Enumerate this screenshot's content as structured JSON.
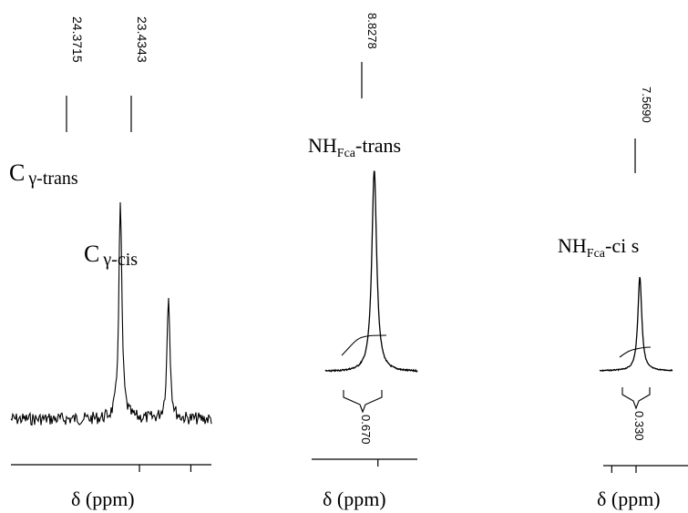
{
  "chart_data": [
    {
      "type": "line",
      "panel": "carbon",
      "peak_labels": [
        "24.3715",
        "23.4343"
      ],
      "peaks": [
        {
          "ppm": 24.3715,
          "height": 1.0,
          "label_main": "C",
          "label_sub": "γ-trans"
        },
        {
          "ppm": 23.4343,
          "height": 0.57,
          "label_main": "C",
          "label_sub": "γ-cis"
        }
      ],
      "xlabel": "δ (ppm)",
      "xlim": [
        26.5,
        22.6
      ],
      "xticks": [
        24.0,
        23.0
      ],
      "baseline_noise": true
    },
    {
      "type": "line",
      "panel": "nh-trans",
      "peak_labels": [
        "8.8278"
      ],
      "peaks": [
        {
          "ppm": 8.8278,
          "height": 1.0,
          "label_main": "NH",
          "label_sub": "Fca",
          "label_suffix": "-trans"
        }
      ],
      "integral": "0.670",
      "xlabel": "δ (ppm)",
      "xlim": [
        9.2,
        8.5
      ],
      "xticks": [
        8.8
      ]
    },
    {
      "type": "line",
      "panel": "nh-cis",
      "peak_labels": [
        "7.5690"
      ],
      "peaks": [
        {
          "ppm": 7.569,
          "height": 1.0,
          "label_main": "NH",
          "label_sub": "Fca",
          "label_suffix": "-ci s"
        }
      ],
      "integral": "0.330",
      "xlabel": "δ (ppm)",
      "xlim": [
        7.9,
        7.3
      ],
      "xticks": [
        7.8,
        7.6
      ]
    }
  ]
}
